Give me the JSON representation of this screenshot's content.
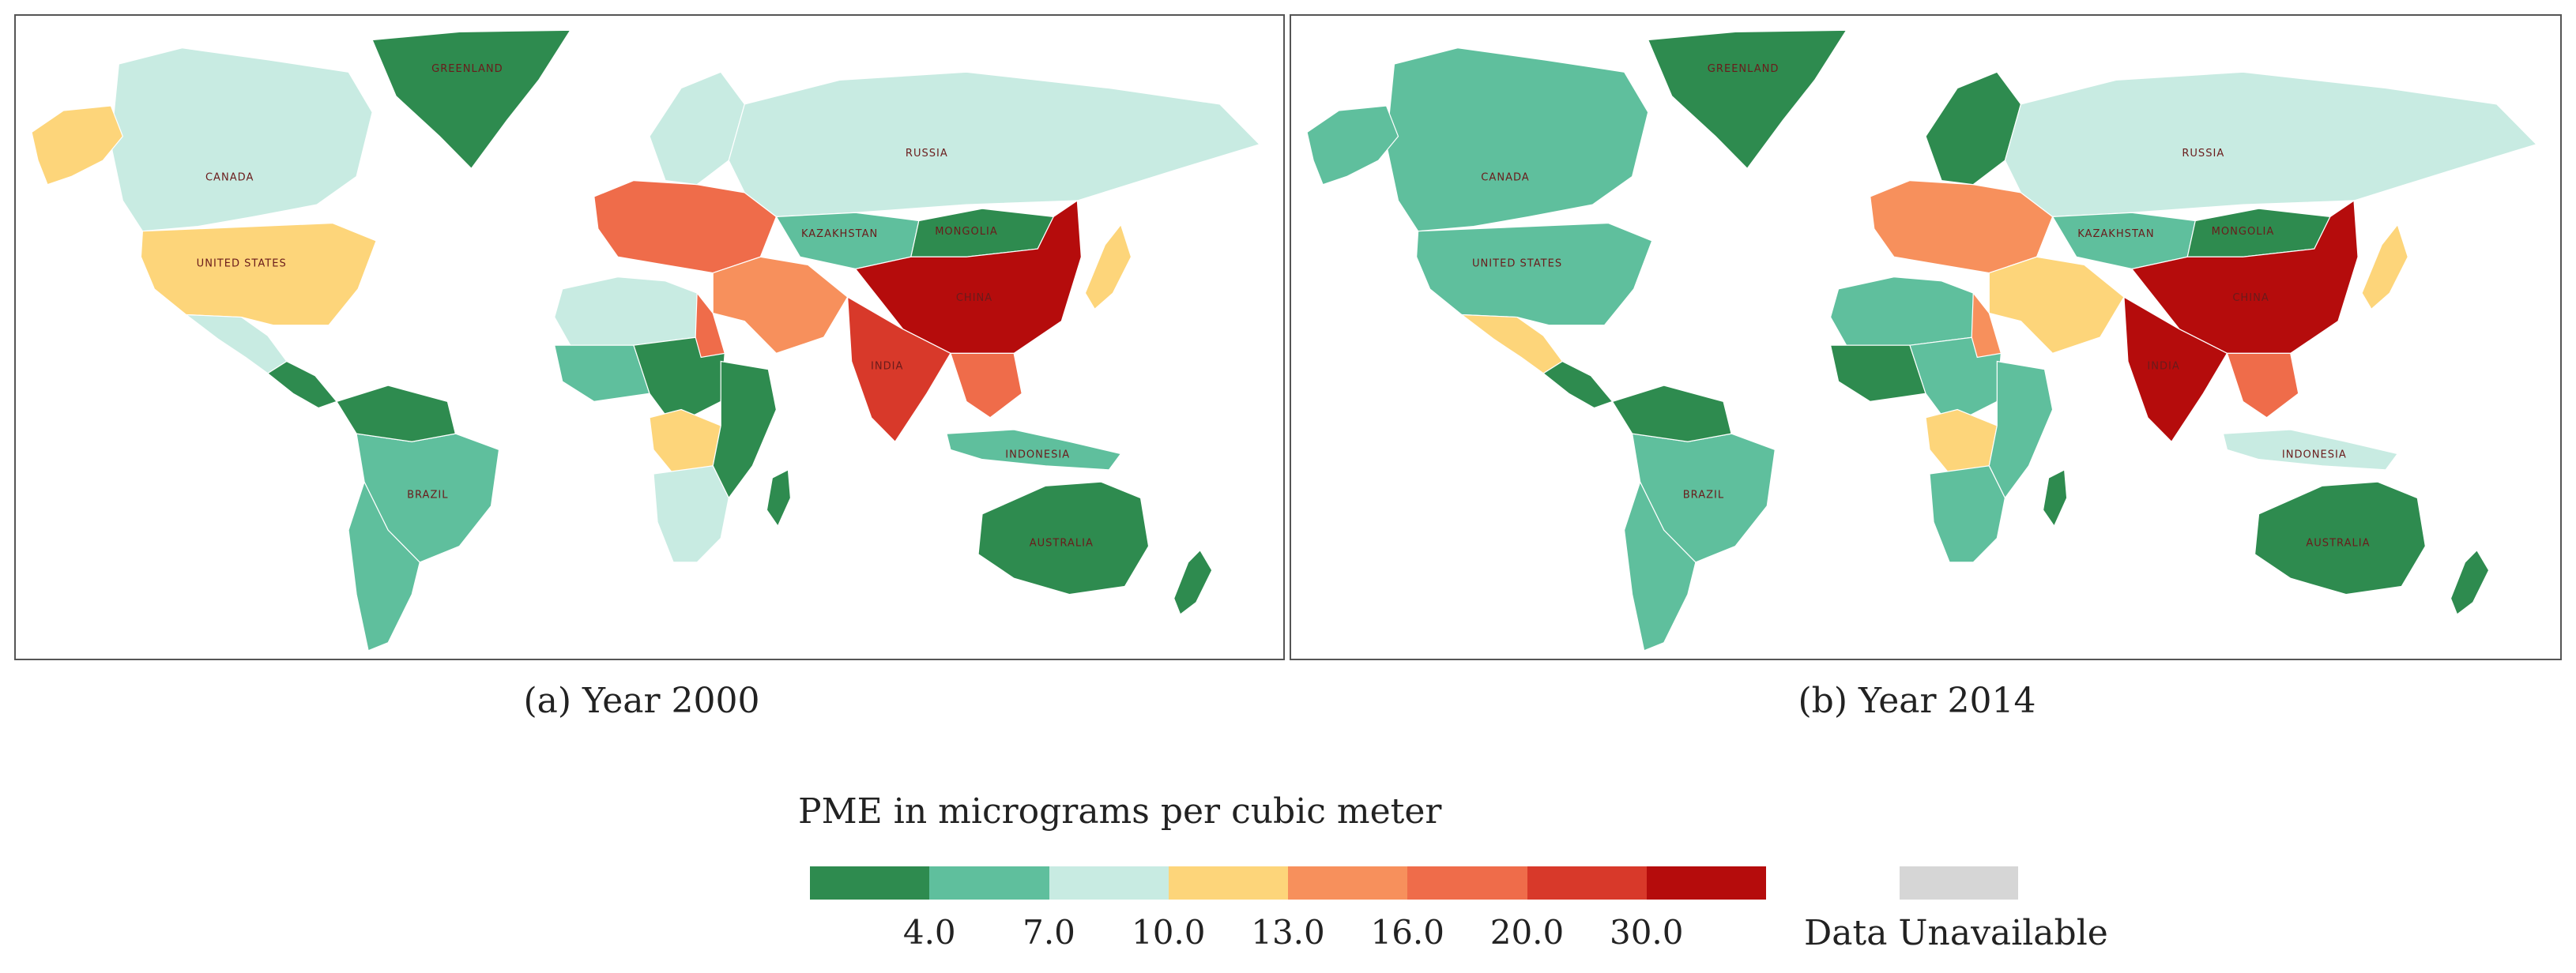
{
  "maps": [
    {
      "id": "a",
      "caption": "(a) Year 2000",
      "regions": [
        {
          "name": "greenland",
          "label": "GREENLAND",
          "color": "#2e8b4f"
        },
        {
          "name": "canada",
          "label": "CANADA",
          "color": "#c8ebe2"
        },
        {
          "name": "alaska",
          "label": "",
          "color": "#fdd57a"
        },
        {
          "name": "united-states",
          "label": "UNITED STATES",
          "color": "#fdd57a"
        },
        {
          "name": "mexico",
          "label": "",
          "color": "#c8ebe2"
        },
        {
          "name": "central-america",
          "label": "",
          "color": "#2e8b4f"
        },
        {
          "name": "south-america",
          "label": "",
          "color": "#5fbf9d"
        },
        {
          "name": "brazil",
          "label": "BRAZIL",
          "color": "#5fbf9d"
        },
        {
          "name": "northern-south-america",
          "label": "",
          "color": "#2e8b4f"
        },
        {
          "name": "europe",
          "label": "",
          "color": "#ef6c4a"
        },
        {
          "name": "scandinavia",
          "label": "",
          "color": "#c8ebe2"
        },
        {
          "name": "russia",
          "label": "RUSSIA",
          "color": "#c8ebe2"
        },
        {
          "name": "kazakhstan",
          "label": "KAZAKHSTAN",
          "color": "#5fbf9d"
        },
        {
          "name": "mongolia",
          "label": "MONGOLIA",
          "color": "#2e8b4f"
        },
        {
          "name": "china",
          "label": "CHINA",
          "color": "#b50c0c"
        },
        {
          "name": "india",
          "label": "INDIA",
          "color": "#d8392a"
        },
        {
          "name": "middle-east",
          "label": "",
          "color": "#f7905c"
        },
        {
          "name": "north-africa",
          "label": "",
          "color": "#c8ebe2"
        },
        {
          "name": "west-africa",
          "label": "",
          "color": "#5fbf9d"
        },
        {
          "name": "central-africa",
          "label": "",
          "color": "#2e8b4f"
        },
        {
          "name": "congo",
          "label": "",
          "color": "#fdd57a"
        },
        {
          "name": "egypt",
          "label": "",
          "color": "#ef6c4a"
        },
        {
          "name": "east-africa",
          "label": "",
          "color": "#2e8b4f"
        },
        {
          "name": "southern-africa",
          "label": "",
          "color": "#c8ebe2"
        },
        {
          "name": "southeast-asia",
          "label": "",
          "color": "#ef6c4a"
        },
        {
          "name": "japan",
          "label": "",
          "color": "#fdd57a"
        },
        {
          "name": "indonesia",
          "label": "INDONESIA",
          "color": "#5fbf9d"
        },
        {
          "name": "australia",
          "label": "AUSTRALIA",
          "color": "#2e8b4f"
        },
        {
          "name": "new-zealand",
          "label": "",
          "color": "#2e8b4f"
        },
        {
          "name": "madagascar",
          "label": "",
          "color": "#2e8b4f"
        }
      ]
    },
    {
      "id": "b",
      "caption": "(b) Year 2014",
      "regions": [
        {
          "name": "greenland",
          "label": "GREENLAND",
          "color": "#2e8b4f"
        },
        {
          "name": "canada",
          "label": "CANADA",
          "color": "#5fbf9d"
        },
        {
          "name": "alaska",
          "label": "",
          "color": "#5fbf9d"
        },
        {
          "name": "united-states",
          "label": "UNITED STATES",
          "color": "#5fbf9d"
        },
        {
          "name": "mexico",
          "label": "",
          "color": "#fdd57a"
        },
        {
          "name": "central-america",
          "label": "",
          "color": "#2e8b4f"
        },
        {
          "name": "south-america",
          "label": "",
          "color": "#5fbf9d"
        },
        {
          "name": "brazil",
          "label": "BRAZIL",
          "color": "#5fbf9d"
        },
        {
          "name": "northern-south-america",
          "label": "",
          "color": "#2e8b4f"
        },
        {
          "name": "europe",
          "label": "",
          "color": "#f7905c"
        },
        {
          "name": "scandinavia",
          "label": "",
          "color": "#2e8b4f"
        },
        {
          "name": "russia",
          "label": "RUSSIA",
          "color": "#c8ebe2"
        },
        {
          "name": "kazakhstan",
          "label": "KAZAKHSTAN",
          "color": "#5fbf9d"
        },
        {
          "name": "mongolia",
          "label": "MONGOLIA",
          "color": "#2e8b4f"
        },
        {
          "name": "china",
          "label": "CHINA",
          "color": "#b50c0c"
        },
        {
          "name": "india",
          "label": "INDIA",
          "color": "#b50c0c"
        },
        {
          "name": "middle-east",
          "label": "",
          "color": "#fdd57a"
        },
        {
          "name": "north-africa",
          "label": "",
          "color": "#5fbf9d"
        },
        {
          "name": "west-africa",
          "label": "",
          "color": "#2e8b4f"
        },
        {
          "name": "central-africa",
          "label": "",
          "color": "#5fbf9d"
        },
        {
          "name": "congo",
          "label": "",
          "color": "#fdd57a"
        },
        {
          "name": "egypt",
          "label": "",
          "color": "#f7905c"
        },
        {
          "name": "east-africa",
          "label": "",
          "color": "#5fbf9d"
        },
        {
          "name": "southern-africa",
          "label": "",
          "color": "#5fbf9d"
        },
        {
          "name": "southeast-asia",
          "label": "",
          "color": "#ef6c4a"
        },
        {
          "name": "japan",
          "label": "",
          "color": "#fdd57a"
        },
        {
          "name": "indonesia",
          "label": "INDONESIA",
          "color": "#c8ebe2"
        },
        {
          "name": "australia",
          "label": "AUSTRALIA",
          "color": "#2e8b4f"
        },
        {
          "name": "new-zealand",
          "label": "",
          "color": "#2e8b4f"
        },
        {
          "name": "madagascar",
          "label": "",
          "color": "#2e8b4f"
        }
      ]
    }
  ],
  "legend": {
    "title": "PME in micrograms per cubic meter",
    "colors": [
      "#2e8b4f",
      "#5fbf9d",
      "#c8ebe2",
      "#fdd57a",
      "#f7905c",
      "#ef6c4a",
      "#d8392a",
      "#b50c0c"
    ],
    "ticks": [
      "4.0",
      "7.0",
      "10.0",
      "13.0",
      "16.0",
      "20.0",
      "30.0"
    ],
    "unavailable_label": "Data Unavailable",
    "unavailable_color": "#d6d6d6"
  }
}
